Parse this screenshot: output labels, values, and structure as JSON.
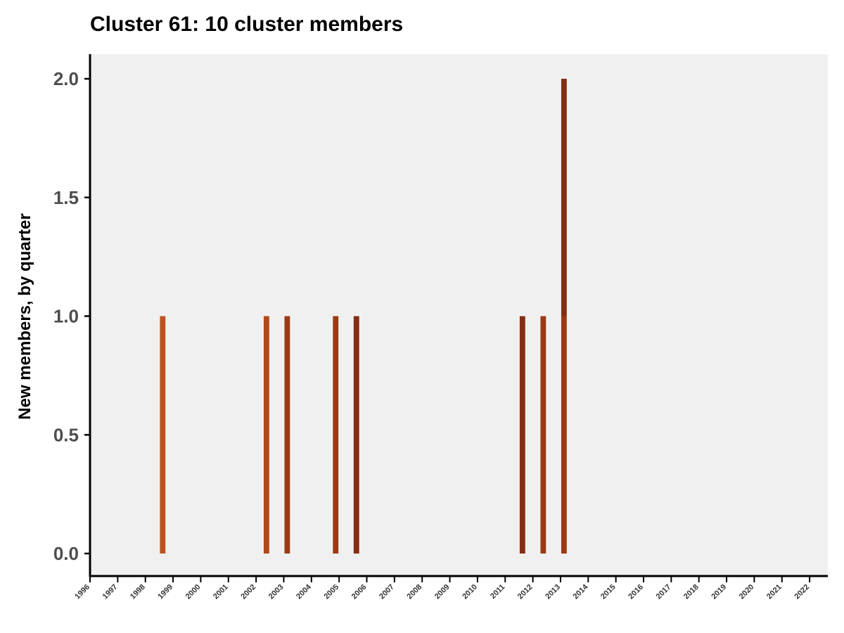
{
  "chart_data": {
    "type": "bar",
    "title": "Cluster 61: 10 cluster members",
    "xlabel": "",
    "ylabel": "New members, by quarter",
    "ylim": [
      -0.1,
      2.1
    ],
    "yticks": [
      "0.0",
      "0.5",
      "1.0",
      "1.5",
      "2.0"
    ],
    "x_tick_labels": [
      "1996",
      "1997",
      "1998",
      "1999",
      "2000",
      "2001",
      "2002",
      "2003",
      "2004",
      "2005",
      "2006",
      "2007",
      "2008",
      "2009",
      "2010",
      "2011",
      "2012",
      "2013",
      "2014",
      "2015",
      "2016",
      "2017",
      "2018",
      "2019",
      "2020",
      "2021",
      "2022"
    ],
    "stacked": true,
    "bars": [
      {
        "quarter": "1998 Q3",
        "x": 1998.625,
        "segments": [
          {
            "value": 1,
            "color": "#bd5320"
          }
        ]
      },
      {
        "quarter": "2002 Q2",
        "x": 2002.375,
        "segments": [
          {
            "value": 1,
            "color": "#b04918"
          }
        ]
      },
      {
        "quarter": "2003 Q1",
        "x": 2003.125,
        "segments": [
          {
            "value": 1,
            "color": "#9a3a14"
          }
        ]
      },
      {
        "quarter": "2004 Q4",
        "x": 2004.875,
        "segments": [
          {
            "value": 1,
            "color": "#9a3a14"
          }
        ]
      },
      {
        "quarter": "2005 Q3",
        "x": 2005.625,
        "segments": [
          {
            "value": 1,
            "color": "#832d12"
          }
        ]
      },
      {
        "quarter": "2011 Q3",
        "x": 2011.625,
        "segments": [
          {
            "value": 1,
            "color": "#832d12"
          }
        ]
      },
      {
        "quarter": "2012 Q2",
        "x": 2012.375,
        "segments": [
          {
            "value": 1,
            "color": "#9a3a14"
          }
        ]
      },
      {
        "quarter": "2013 Q1",
        "x": 2013.125,
        "segments": [
          {
            "value": 1,
            "color": "#9a3a14"
          },
          {
            "value": 1,
            "color": "#832d12"
          }
        ]
      }
    ],
    "panel_background": "#f0f0f0",
    "grid": false,
    "legend": "none"
  }
}
